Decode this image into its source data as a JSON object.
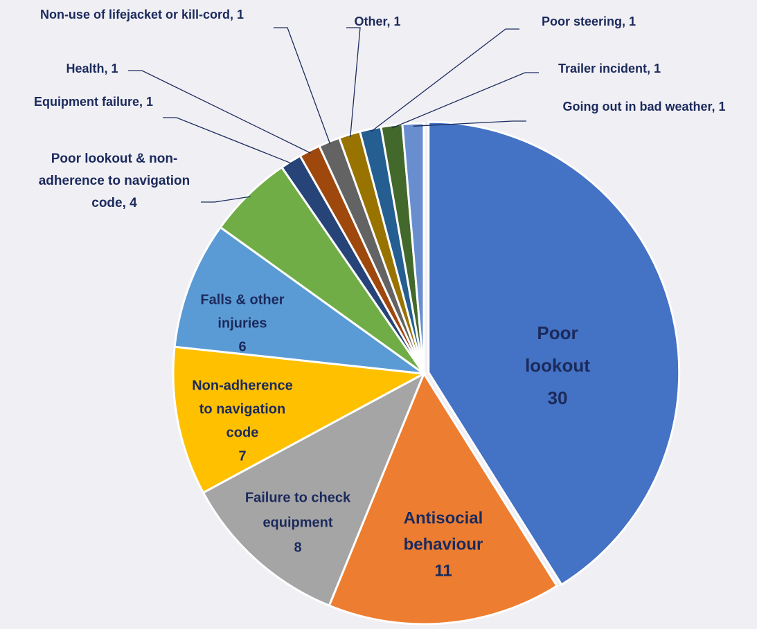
{
  "chart_data": {
    "type": "pie",
    "values": [
      30,
      11,
      8,
      7,
      6,
      4,
      1,
      1,
      1,
      1,
      1,
      1,
      1
    ],
    "labels": [
      [
        "Poor",
        "lookout",
        "30"
      ],
      [
        "Antisocial",
        "behaviour",
        "11"
      ],
      [
        "Failure to check",
        "equipment",
        "8"
      ],
      [
        "Non-adherence",
        "to navigation",
        "code",
        "7"
      ],
      [
        "Falls & other",
        "injuries",
        "6"
      ],
      [
        "Poor lookout & non-",
        "adherence to navigation",
        "code, 4"
      ],
      [
        "Equipment failure, 1"
      ],
      [
        "Health, 1"
      ],
      [
        "Non-use of lifejacket or kill-cord, 1"
      ],
      [
        "Other, 1"
      ],
      [
        "Poor steering, 1"
      ],
      [
        "Trailer incident, 1"
      ],
      [
        "Going out in bad weather, 1"
      ]
    ],
    "colors": [
      "#4472c4",
      "#ed7d31",
      "#a5a5a5",
      "#ffc000",
      "#5b9bd5",
      "#70ad47",
      "#264478",
      "#9e480e",
      "#636363",
      "#997300",
      "#255e91",
      "#43682b",
      "#698ed0"
    ]
  }
}
